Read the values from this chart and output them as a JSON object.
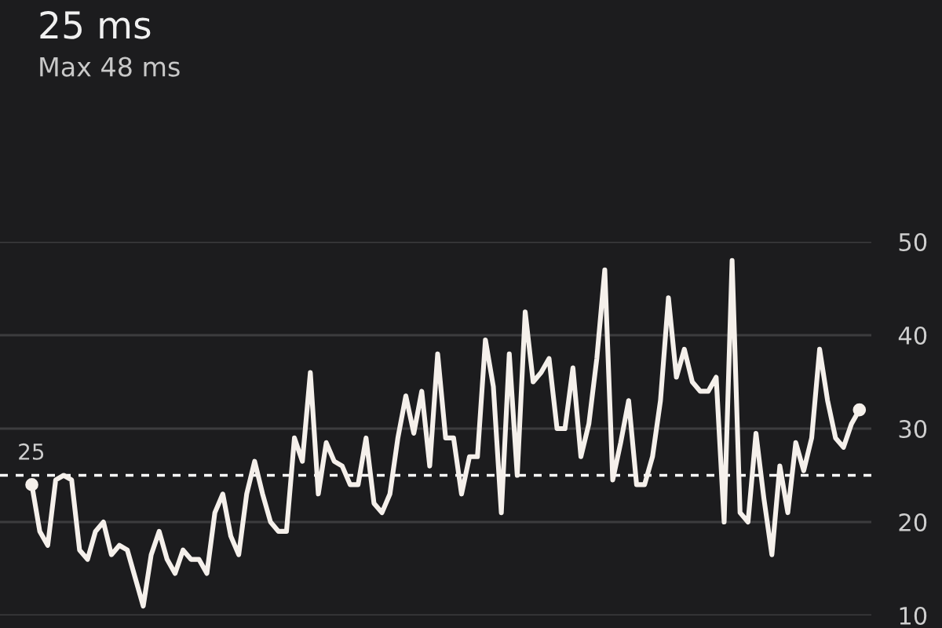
{
  "chart_data": {
    "type": "line",
    "title": "25 ms",
    "subtitle": "Max 48 ms",
    "categories": [
      null,
      null,
      null,
      null,
      null,
      null,
      null,
      null,
      null,
      null,
      null,
      null,
      null,
      null,
      null,
      null,
      null,
      null,
      null,
      null,
      null,
      null,
      null,
      null,
      null,
      null,
      null,
      null,
      null,
      null,
      null,
      null,
      null,
      null,
      null,
      null,
      null,
      null,
      null,
      null,
      null,
      null,
      null,
      null,
      null,
      null,
      null,
      null,
      null,
      null,
      null,
      null,
      null,
      null,
      null,
      null,
      null,
      null,
      null,
      null,
      null,
      null,
      null,
      null,
      null,
      null,
      null,
      null,
      null,
      null,
      null,
      null,
      null,
      null,
      null,
      null,
      null,
      null,
      null,
      null,
      null,
      null,
      null,
      null,
      null,
      null,
      null,
      null,
      null,
      null,
      null,
      null,
      null,
      null,
      null,
      null,
      null,
      null,
      null,
      null,
      null,
      null,
      null,
      null,
      null
    ],
    "series": [
      {
        "color": "#f5f0eb",
        "values": [
          24,
          19,
          17.5,
          24.5,
          25,
          24.5,
          17,
          16,
          19,
          20,
          16.5,
          17.5,
          17,
          14,
          11,
          16.5,
          19,
          16,
          14.5,
          17,
          16,
          16,
          14.5,
          21,
          23,
          18.5,
          16.5,
          23,
          26.5,
          23,
          20,
          19,
          19,
          29,
          26.5,
          36,
          23,
          28.5,
          26.5,
          26,
          24,
          24,
          29,
          22,
          21,
          23,
          29,
          33.5,
          29.5,
          34,
          26,
          38,
          29,
          29,
          23,
          27,
          27,
          39.5,
          34.5,
          21,
          38,
          25,
          42.5,
          35,
          36,
          37.5,
          30,
          30,
          36.5,
          27,
          30.5,
          37.5,
          47,
          24.5,
          28.5,
          33,
          24,
          24,
          27,
          33,
          44,
          35.5,
          38.5,
          35,
          34,
          34,
          35.5,
          20,
          48,
          21,
          20,
          29.5,
          22.5,
          16.5,
          26,
          21,
          28.5,
          25.5,
          29,
          38.5,
          33,
          29,
          28,
          30.5,
          32
        ]
      }
    ],
    "ylim": [
      10,
      50
    ],
    "yticks": [
      10,
      20,
      30,
      40,
      50
    ],
    "grid": "y",
    "ref_lines": [
      {
        "axis": "y",
        "value": 25,
        "label": "25",
        "color": "#ffffff",
        "line_style": "dashed"
      }
    ]
  }
}
